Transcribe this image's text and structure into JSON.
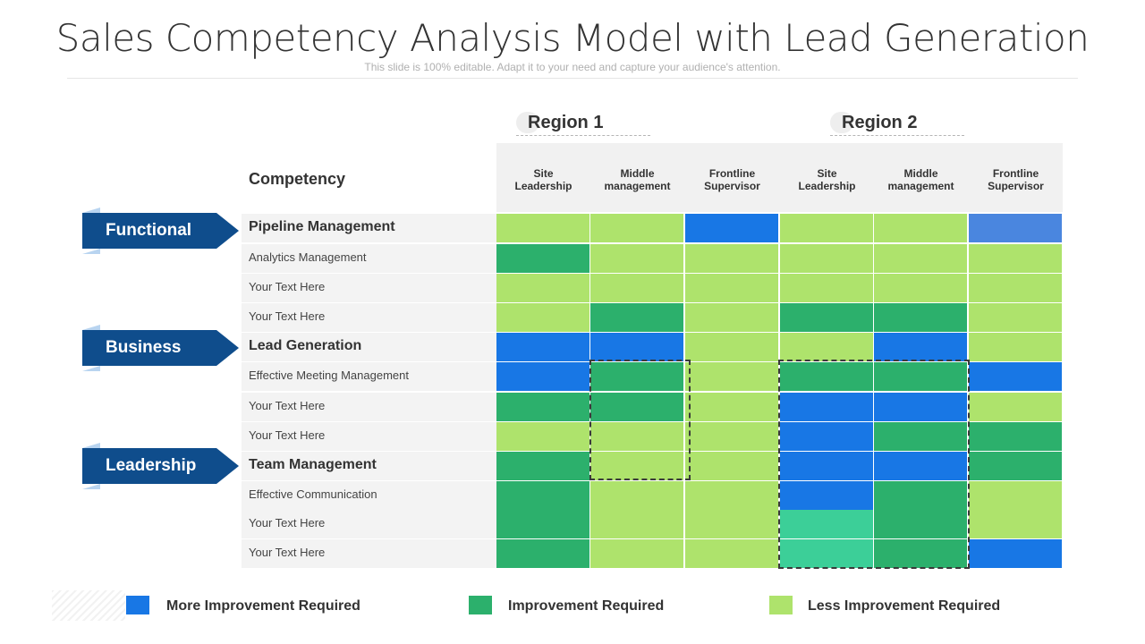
{
  "title": "Sales Competency Analysis Model with Lead Generation",
  "subtitle": "This slide is 100% editable. Adapt it to your need and capture your audience's attention.",
  "regions": [
    "Region 1",
    "Region 2"
  ],
  "competency_header": "Competency",
  "columns": [
    {
      "line1": "Site",
      "line2": "Leadership"
    },
    {
      "line1": "Middle",
      "line2": "management"
    },
    {
      "line1": "Frontline",
      "line2": "Supervisor"
    },
    {
      "line1": "Site",
      "line2": "Leadership"
    },
    {
      "line1": "Middle",
      "line2": "management"
    },
    {
      "line1": "Frontline",
      "line2": "Supervisor"
    }
  ],
  "categories": [
    "Functional",
    "Business",
    "Leadership"
  ],
  "rows": [
    {
      "label": "Pipeline Management",
      "bold": true
    },
    {
      "label": "Analytics Management",
      "bold": false
    },
    {
      "label": "Your Text Here",
      "bold": false
    },
    {
      "label": "Your Text Here",
      "bold": false
    },
    {
      "label": "Lead Generation",
      "bold": true
    },
    {
      "label": "Effective Meeting Management",
      "bold": false
    },
    {
      "label": "Your Text Here",
      "bold": false
    },
    {
      "label": "Your Text Here",
      "bold": false
    },
    {
      "label": "Team Management",
      "bold": true
    },
    {
      "label": "Effective Communication",
      "bold": false
    },
    {
      "label": "Your Text Here",
      "bold": false
    },
    {
      "label": "Your Text Here",
      "bold": false
    }
  ],
  "matrix": [
    [
      "L",
      "L",
      "M",
      "L",
      "L",
      "M2"
    ],
    [
      "I",
      "L",
      "L",
      "L",
      "L",
      "L"
    ],
    [
      "L",
      "L",
      "L",
      "L",
      "L",
      "L"
    ],
    [
      "L",
      "I",
      "L",
      "I",
      "I",
      "L"
    ],
    [
      "M",
      "M",
      "L",
      "L",
      "M",
      "L"
    ],
    [
      "M",
      "I",
      "L",
      "I",
      "I",
      "M"
    ],
    [
      "I",
      "I",
      "L",
      "M",
      "M",
      "L"
    ],
    [
      "L",
      "L",
      "L",
      "M",
      "I",
      "I"
    ],
    [
      "I",
      "L",
      "L",
      "M",
      "M",
      "I"
    ],
    [
      "I",
      "L",
      "L",
      "M",
      "I",
      "L"
    ],
    [
      "I",
      "L",
      "L",
      "T",
      "I",
      "L"
    ],
    [
      "I",
      "L",
      "L",
      "T",
      "I",
      "M"
    ]
  ],
  "level_colors": {
    "M": "#1877e5",
    "M2": "#4a86df",
    "I": "#2cb06c",
    "L": "#aee36c",
    "T": "#3ccf98"
  },
  "legend": [
    {
      "label": "More Improvement Required",
      "color": "#1877e5"
    },
    {
      "label": "Improvement Required",
      "color": "#2cb06c"
    },
    {
      "label": "Less Improvement Required",
      "color": "#aee36c"
    }
  ]
}
